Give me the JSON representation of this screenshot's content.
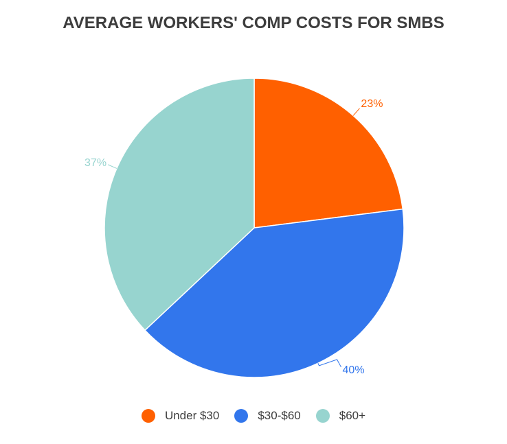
{
  "chart_data": {
    "type": "pie",
    "title": "AVERAGE WORKERS' COMP COSTS FOR SMBS",
    "categories": [
      "Under $30",
      "$30-$60",
      "$60+"
    ],
    "values": [
      23,
      40,
      37
    ],
    "data_labels": [
      "23%",
      "40%",
      "37%"
    ],
    "colors": [
      "#ff6000",
      "#3276ec",
      "#97d4cf"
    ],
    "legend_placement": "bottom"
  }
}
